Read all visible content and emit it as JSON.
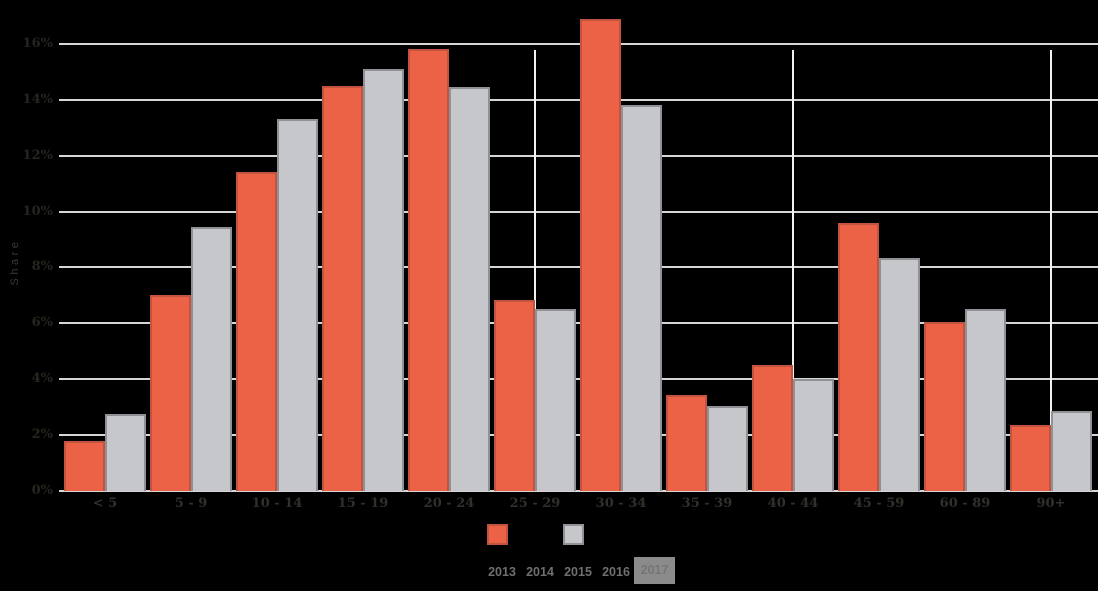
{
  "chart_data": {
    "type": "bar",
    "title": "",
    "ylabel": "Share",
    "categories": [
      "< 5",
      "5 - 9",
      "10 - 14",
      "15 - 19",
      "20 - 24",
      "25 - 29",
      "30 - 34",
      "35 - 39",
      "40 - 44",
      "45 - 59",
      "60 - 89",
      "90+"
    ],
    "series": [
      {
        "name": "orange",
        "color": "#EC6246",
        "border_color": "#C2543F",
        "values": [
          1.8,
          7.0,
          11.4,
          14.5,
          15.8,
          6.85,
          16.9,
          3.45,
          4.5,
          9.6,
          6.05,
          2.35
        ]
      },
      {
        "name": "gray",
        "color": "#C6C7CB",
        "border_color": "#8F9196",
        "values": [
          2.75,
          9.45,
          13.3,
          15.1,
          14.45,
          6.5,
          13.8,
          3.05,
          4.0,
          8.35,
          6.5,
          2.85
        ]
      }
    ],
    "y_ticks": [
      {
        "value": 0,
        "label": "0%"
      },
      {
        "value": 2,
        "label": "2%"
      },
      {
        "value": 4,
        "label": "4%"
      },
      {
        "value": 6,
        "label": "6%"
      },
      {
        "value": 8,
        "label": "8%"
      },
      {
        "value": 10,
        "label": "10%"
      },
      {
        "value": 12,
        "label": "12%"
      },
      {
        "value": 14,
        "label": "14%"
      },
      {
        "value": 16,
        "label": "16%"
      }
    ],
    "ylim": [
      0,
      17.6
    ],
    "grid": "horizontal",
    "vertical_gridlines_at_categories": [
      "25 - 29",
      "40 - 44",
      "90+"
    ],
    "legend_position": "bottom"
  },
  "legend": {
    "swatches": [
      {
        "name": "orange-series",
        "color": "#EC6246",
        "border_color": "#C2543F"
      },
      {
        "name": "gray-series",
        "color": "#C6C7CB",
        "border_color": "#8F9196"
      }
    ]
  },
  "year_selector": {
    "items": [
      {
        "label": "2013",
        "selected": false
      },
      {
        "label": "2014",
        "selected": false
      },
      {
        "label": "2015",
        "selected": false
      },
      {
        "label": "2016",
        "selected": false
      },
      {
        "label": "2017",
        "selected": true
      }
    ]
  },
  "colors": {
    "background": "#000000",
    "gridline": "#D6D6D6",
    "vertical_gridline": "#F2F2F2",
    "tick_label": "#26251F",
    "x_label": "#31302B",
    "axis_title": "#3B3A34",
    "year_text": "#6F6F6F",
    "selected_year_bg": "#8B8B8B",
    "selected_year_text": "#757575"
  }
}
